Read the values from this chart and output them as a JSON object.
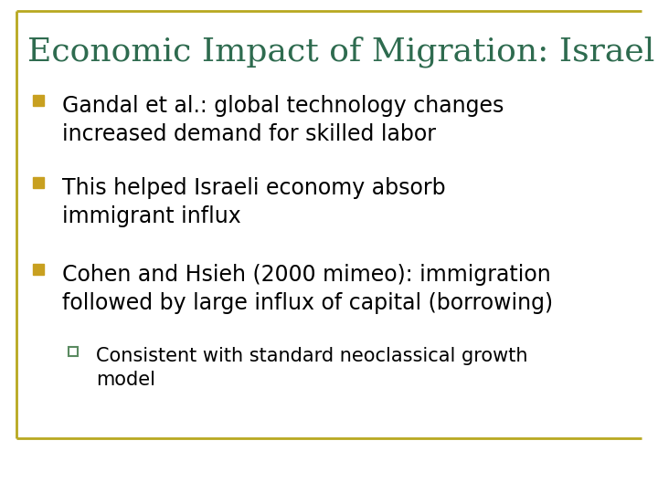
{
  "title": "Economic Impact of Migration: Israel",
  "title_color": "#2E6B4F",
  "title_fontsize": 26,
  "background_color": "#FFFFFF",
  "border_color": "#B8A820",
  "bullet_color": "#C8A020",
  "sub_bullet_color": "#5A8A60",
  "bullet_items": [
    "Gandal et al.: global technology changes\nincreased demand for skilled labor",
    "This helped Israeli economy absorb\nimmigrant influx",
    "Cohen and Hsieh (2000 mimeo): immigration\nfollowed by large influx of capital (borrowing)"
  ],
  "sub_bullet_items": [
    "Consistent with standard neoclassical growth\nmodel"
  ],
  "bullet_fontsize": 17,
  "sub_bullet_fontsize": 15,
  "text_color": "#000000"
}
